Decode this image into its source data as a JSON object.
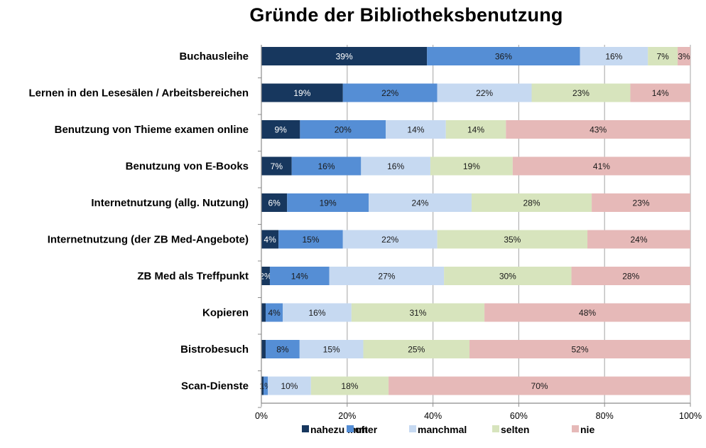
{
  "chart_data": {
    "type": "bar",
    "orientation": "horizontal",
    "stacked": "percent",
    "title": "Gründe der Bibliotheksbenutzung",
    "xlabel": "",
    "ylabel": "",
    "xlim": [
      0,
      100
    ],
    "x_ticks": [
      "0%",
      "20%",
      "40%",
      "60%",
      "80%",
      "100%"
    ],
    "grid": "vertical",
    "legend_position": "bottom",
    "categories": [
      "Buchausleihe",
      "Lernen in den Lesesälen / Arbeitsbereichen",
      "Benutzung von Thieme examen online",
      "Benutzung von E-Books",
      "Internetnutzung (allg. Nutzung)",
      "Internetnutzung (der ZB Med-Angebote)",
      "ZB Med als Treffpunkt",
      "Kopieren",
      "Bistrobesuch",
      "Scan-Dienste"
    ],
    "series": [
      {
        "name": "nahezu immer",
        "color": "#17375e",
        "label_color": "#ffffff",
        "values": [
          39,
          19,
          9,
          7,
          6,
          4,
          2,
          1,
          1,
          0.5
        ],
        "labels": [
          "39%",
          "19%",
          "9%",
          "7%",
          "6%",
          "4%",
          "2%",
          "",
          "",
          ""
        ]
      },
      {
        "name": "oft",
        "color": "#558ed5",
        "label_color": "#1a1a1a",
        "values": [
          36,
          22,
          20,
          16,
          19,
          15,
          14,
          4,
          8,
          1
        ],
        "labels": [
          "36%",
          "22%",
          "20%",
          "16%",
          "19%",
          "15%",
          "14%",
          "4%",
          "8%",
          "1%"
        ]
      },
      {
        "name": "manchmal",
        "color": "#c6d9f1",
        "label_color": "#1a1a1a",
        "values": [
          16,
          22,
          14,
          16,
          24,
          22,
          27,
          16,
          15,
          10
        ],
        "labels": [
          "16%",
          "22%",
          "14%",
          "16%",
          "24%",
          "22%",
          "27%",
          "16%",
          "15%",
          "10%"
        ]
      },
      {
        "name": "selten",
        "color": "#d7e4bd",
        "label_color": "#1a1a1a",
        "values": [
          7,
          23,
          14,
          19,
          28,
          35,
          30,
          31,
          25,
          18
        ],
        "labels": [
          "7%",
          "23%",
          "14%",
          "19%",
          "28%",
          "35%",
          "30%",
          "31%",
          "25%",
          "18%"
        ]
      },
      {
        "name": "nie",
        "color": "#e6b9b8",
        "label_color": "#1a1a1a",
        "values": [
          3,
          14,
          43,
          41,
          23,
          24,
          28,
          48,
          52,
          70
        ],
        "labels": [
          "3%",
          "14%",
          "43%",
          "41%",
          "23%",
          "24%",
          "28%",
          "48%",
          "52%",
          "70%"
        ]
      }
    ]
  }
}
